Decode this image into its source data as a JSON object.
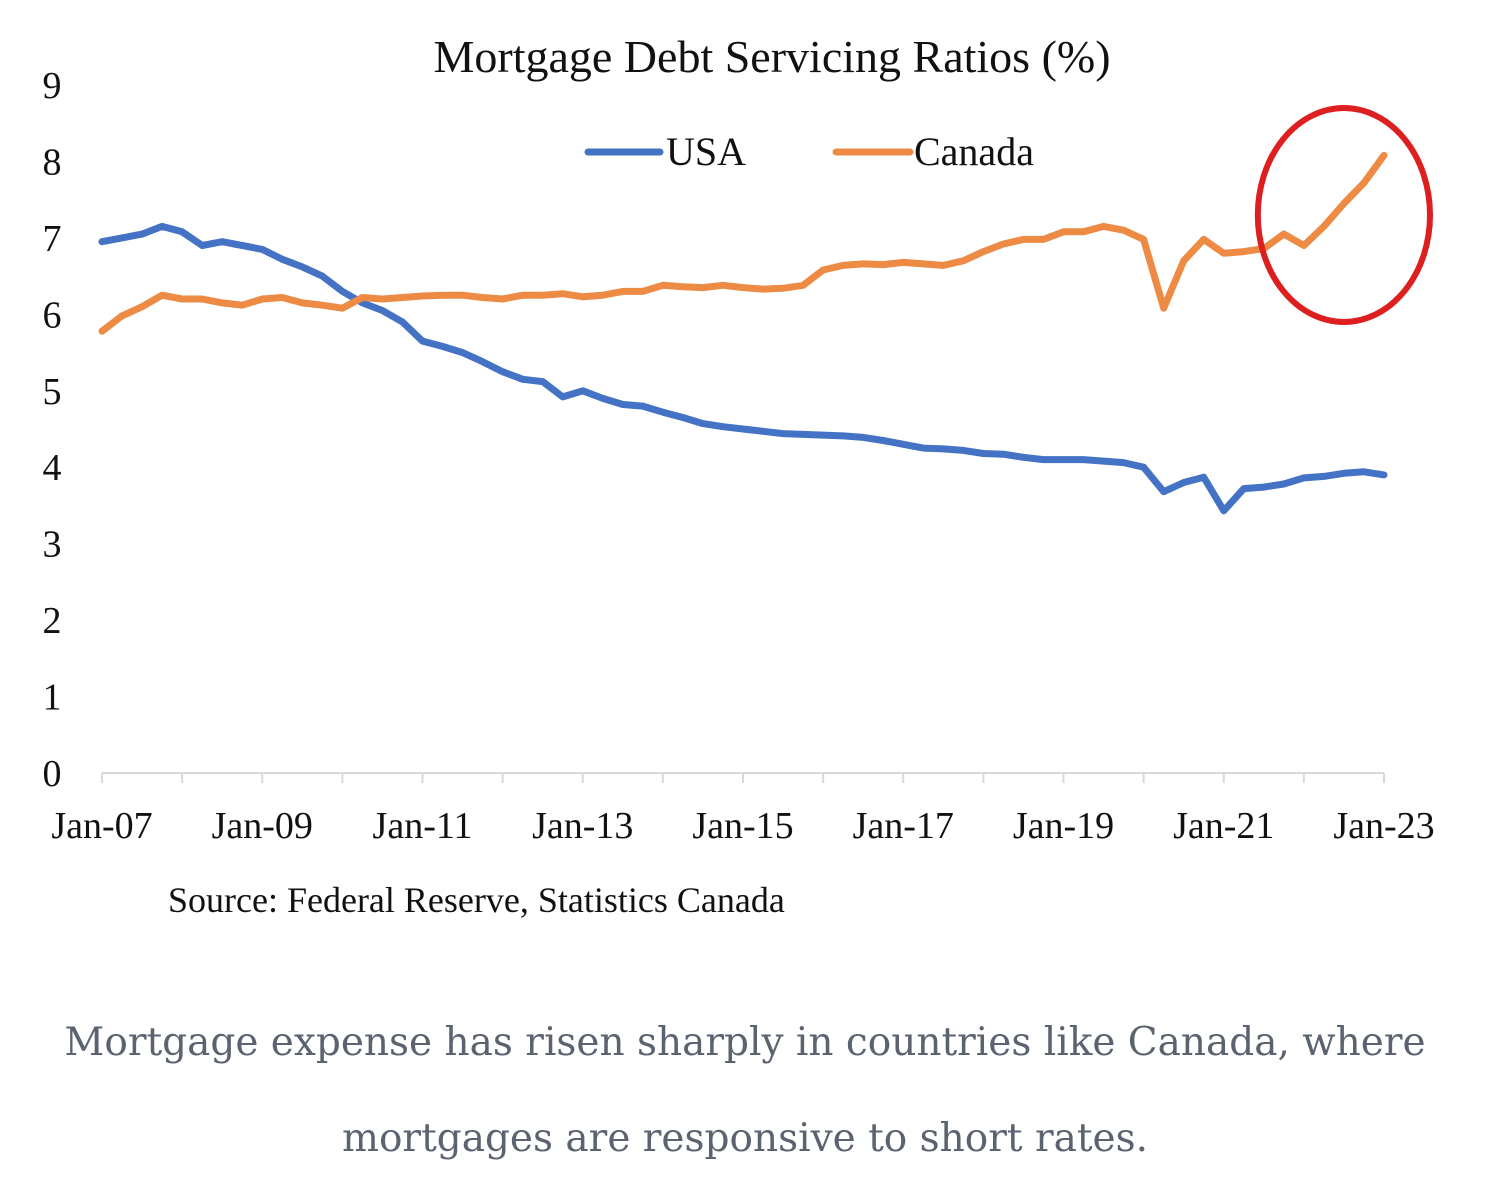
{
  "chart_data": {
    "type": "line",
    "title": "Mortgage Debt Servicing Ratios (%)",
    "source": "Source: Federal Reserve, Statistics Canada",
    "xlabel": "",
    "ylabel": "",
    "x_ticks": [
      "Jan-07",
      "Jan-09",
      "Jan-11",
      "Jan-13",
      "Jan-15",
      "Jan-17",
      "Jan-19",
      "Jan-21",
      "Jan-23"
    ],
    "y_ticks": [
      "0",
      "1",
      "2",
      "3",
      "4",
      "5",
      "6",
      "7",
      "8",
      "9"
    ],
    "xlim": [
      "2007-01",
      "2023-01"
    ],
    "ylim": [
      0,
      9
    ],
    "grid": false,
    "legend": "top-center",
    "highlight": {
      "shape": "ellipse",
      "color": "#dd1f1f",
      "x_range": [
        "2021-04",
        "2023-01"
      ],
      "y_range": [
        5.9,
        8.7
      ]
    },
    "series": [
      {
        "name": "USA",
        "color": "#4472c4",
        "points": [
          [
            "2007-01",
            6.95
          ],
          [
            "2007-04",
            7.0
          ],
          [
            "2007-07",
            7.05
          ],
          [
            "2007-10",
            7.15
          ],
          [
            "2008-01",
            7.08
          ],
          [
            "2008-04",
            6.9
          ],
          [
            "2008-07",
            6.95
          ],
          [
            "2008-10",
            6.9
          ],
          [
            "2009-01",
            6.85
          ],
          [
            "2009-04",
            6.72
          ],
          [
            "2009-07",
            6.62
          ],
          [
            "2009-10",
            6.5
          ],
          [
            "2010-01",
            6.3
          ],
          [
            "2010-04",
            6.15
          ],
          [
            "2010-07",
            6.05
          ],
          [
            "2010-10",
            5.9
          ],
          [
            "2011-01",
            5.65
          ],
          [
            "2011-04",
            5.58
          ],
          [
            "2011-07",
            5.5
          ],
          [
            "2011-10",
            5.38
          ],
          [
            "2012-01",
            5.25
          ],
          [
            "2012-04",
            5.15
          ],
          [
            "2012-07",
            5.12
          ],
          [
            "2012-10",
            4.92
          ],
          [
            "2013-01",
            5.0
          ],
          [
            "2013-04",
            4.9
          ],
          [
            "2013-07",
            4.82
          ],
          [
            "2013-10",
            4.8
          ],
          [
            "2014-01",
            4.72
          ],
          [
            "2014-04",
            4.65
          ],
          [
            "2014-07",
            4.57
          ],
          [
            "2014-10",
            4.53
          ],
          [
            "2015-01",
            4.5
          ],
          [
            "2015-04",
            4.47
          ],
          [
            "2015-07",
            4.44
          ],
          [
            "2015-10",
            4.43
          ],
          [
            "2016-01",
            4.42
          ],
          [
            "2016-04",
            4.41
          ],
          [
            "2016-07",
            4.39
          ],
          [
            "2016-10",
            4.35
          ],
          [
            "2017-01",
            4.3
          ],
          [
            "2017-04",
            4.25
          ],
          [
            "2017-07",
            4.24
          ],
          [
            "2017-10",
            4.22
          ],
          [
            "2018-01",
            4.18
          ],
          [
            "2018-04",
            4.17
          ],
          [
            "2018-07",
            4.13
          ],
          [
            "2018-10",
            4.1
          ],
          [
            "2019-01",
            4.1
          ],
          [
            "2019-04",
            4.1
          ],
          [
            "2019-07",
            4.08
          ],
          [
            "2019-10",
            4.06
          ],
          [
            "2020-01",
            4.0
          ],
          [
            "2020-04",
            3.68
          ],
          [
            "2020-07",
            3.8
          ],
          [
            "2020-10",
            3.87
          ],
          [
            "2021-01",
            3.43
          ],
          [
            "2021-04",
            3.72
          ],
          [
            "2021-07",
            3.74
          ],
          [
            "2021-10",
            3.78
          ],
          [
            "2022-01",
            3.86
          ],
          [
            "2022-04",
            3.88
          ],
          [
            "2022-07",
            3.92
          ],
          [
            "2022-10",
            3.94
          ],
          [
            "2023-01",
            3.9
          ]
        ]
      },
      {
        "name": "Canada",
        "color": "#ed8b45",
        "points": [
          [
            "2007-01",
            5.78
          ],
          [
            "2007-04",
            5.98
          ],
          [
            "2007-07",
            6.1
          ],
          [
            "2007-10",
            6.25
          ],
          [
            "2008-01",
            6.2
          ],
          [
            "2008-04",
            6.2
          ],
          [
            "2008-07",
            6.15
          ],
          [
            "2008-10",
            6.12
          ],
          [
            "2009-01",
            6.2
          ],
          [
            "2009-04",
            6.22
          ],
          [
            "2009-07",
            6.15
          ],
          [
            "2009-10",
            6.12
          ],
          [
            "2010-01",
            6.08
          ],
          [
            "2010-04",
            6.22
          ],
          [
            "2010-07",
            6.2
          ],
          [
            "2010-10",
            6.22
          ],
          [
            "2011-01",
            6.24
          ],
          [
            "2011-04",
            6.25
          ],
          [
            "2011-07",
            6.25
          ],
          [
            "2011-10",
            6.22
          ],
          [
            "2012-01",
            6.2
          ],
          [
            "2012-04",
            6.25
          ],
          [
            "2012-07",
            6.25
          ],
          [
            "2012-10",
            6.27
          ],
          [
            "2013-01",
            6.23
          ],
          [
            "2013-04",
            6.25
          ],
          [
            "2013-07",
            6.3
          ],
          [
            "2013-10",
            6.3
          ],
          [
            "2014-01",
            6.38
          ],
          [
            "2014-04",
            6.36
          ],
          [
            "2014-07",
            6.35
          ],
          [
            "2014-10",
            6.38
          ],
          [
            "2015-01",
            6.35
          ],
          [
            "2015-04",
            6.33
          ],
          [
            "2015-07",
            6.34
          ],
          [
            "2015-10",
            6.38
          ],
          [
            "2016-01",
            6.58
          ],
          [
            "2016-04",
            6.64
          ],
          [
            "2016-07",
            6.66
          ],
          [
            "2016-10",
            6.65
          ],
          [
            "2017-01",
            6.68
          ],
          [
            "2017-04",
            6.66
          ],
          [
            "2017-07",
            6.64
          ],
          [
            "2017-10",
            6.7
          ],
          [
            "2018-01",
            6.82
          ],
          [
            "2018-04",
            6.92
          ],
          [
            "2018-07",
            6.98
          ],
          [
            "2018-10",
            6.98
          ],
          [
            "2019-01",
            7.08
          ],
          [
            "2019-04",
            7.08
          ],
          [
            "2019-07",
            7.15
          ],
          [
            "2019-10",
            7.1
          ],
          [
            "2020-01",
            6.98
          ],
          [
            "2020-04",
            6.08
          ],
          [
            "2020-07",
            6.7
          ],
          [
            "2020-10",
            6.98
          ],
          [
            "2021-01",
            6.8
          ],
          [
            "2021-04",
            6.82
          ],
          [
            "2021-07",
            6.86
          ],
          [
            "2021-10",
            7.05
          ],
          [
            "2022-01",
            6.9
          ],
          [
            "2022-04",
            7.15
          ],
          [
            "2022-07",
            7.45
          ],
          [
            "2022-10",
            7.72
          ],
          [
            "2023-01",
            8.08
          ]
        ]
      }
    ]
  },
  "caption": "Mortgage expense has risen sharply in countries like Canada, where mortgages are responsive to short rates."
}
